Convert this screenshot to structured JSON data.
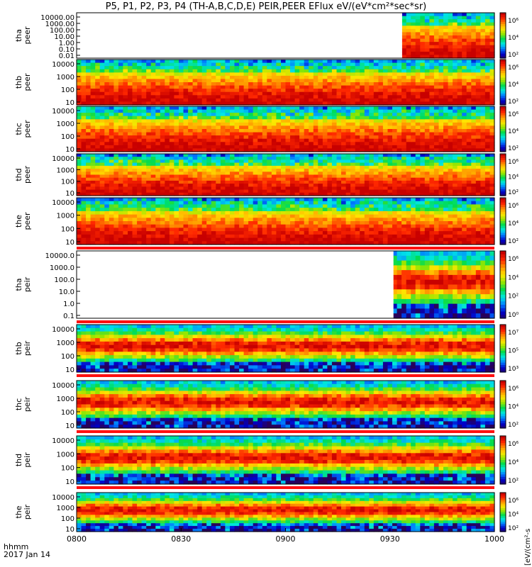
{
  "title": "P5, P1, P2, P3, P4 (TH-A,B,C,D,E) PEIR,PEER EFlux eV/(eV*cm²*sec*sr)",
  "colorbar_unit": "[eV/(cm²-s",
  "time_unit": "hhmm",
  "date": "2017 Jan 14",
  "chart_data": {
    "type": "heatmap",
    "x_tick_labels": [
      "0800",
      "0830",
      "0900",
      "0930",
      "1000"
    ],
    "x_ticks_minutes": [
      0,
      30,
      60,
      90,
      120
    ],
    "xlim_minutes": [
      0,
      120
    ],
    "panels": [
      {
        "name": "tha peer",
        "ylabel": [
          "tha",
          "peer"
        ],
        "yticks": [
          "10000.00",
          "1000.00",
          "100.00",
          "10.00",
          "1.00",
          "0.10",
          "0.01"
        ],
        "data_start_min": 93.5,
        "cbar_ticks": [
          "10⁶",
          "10⁴",
          "10²"
        ],
        "has_bar": false
      },
      {
        "name": "thb peer",
        "ylabel": [
          "thb",
          "peer"
        ],
        "yticks": [
          "10000",
          "1000",
          "100",
          "10"
        ],
        "data_start_min": 0,
        "cbar_ticks": [
          "10⁶",
          "10⁴",
          "10²"
        ],
        "has_bar": false
      },
      {
        "name": "thc peer",
        "ylabel": [
          "thc",
          "peer"
        ],
        "yticks": [
          "10000",
          "1000",
          "100",
          "10"
        ],
        "data_start_min": 0,
        "cbar_ticks": [
          "10⁶",
          "10⁴",
          "10²"
        ],
        "has_bar": false
      },
      {
        "name": "thd peer",
        "ylabel": [
          "thd",
          "peer"
        ],
        "yticks": [
          "10000",
          "1000",
          "100",
          "10"
        ],
        "data_start_min": 0,
        "cbar_ticks": [
          "10⁶",
          "10⁴",
          "10²"
        ],
        "has_bar": false
      },
      {
        "name": "the peer",
        "ylabel": [
          "the",
          "peer"
        ],
        "yticks": [
          "10000",
          "1000",
          "100",
          "10"
        ],
        "data_start_min": 0,
        "cbar_ticks": [
          "10⁶",
          "10⁴",
          "10²"
        ],
        "has_bar": true
      },
      {
        "name": "tha peir",
        "ylabel": [
          "tha",
          "peir"
        ],
        "yticks": [
          "10000.0",
          "1000.0",
          "100.0",
          "10.0",
          "1.0",
          "0.1"
        ],
        "data_start_min": 91,
        "cbar_ticks": [
          "10⁶",
          "10⁴",
          "10²",
          "10⁰"
        ],
        "has_bar": true
      },
      {
        "name": "thb peir",
        "ylabel": [
          "thb",
          "peir"
        ],
        "yticks": [
          "10000",
          "1000",
          "100",
          "10"
        ],
        "data_start_min": 0,
        "cbar_ticks": [
          "10⁷",
          "10⁵",
          "10³"
        ],
        "has_bar": true
      },
      {
        "name": "thc peir",
        "ylabel": [
          "thc",
          "peir"
        ],
        "yticks": [
          "10000",
          "1000",
          "100",
          "10"
        ],
        "data_start_min": 0,
        "cbar_ticks": [
          "10⁶",
          "10⁴",
          "10²"
        ],
        "has_bar": true
      },
      {
        "name": "thd peir",
        "ylabel": [
          "thd",
          "peir"
        ],
        "yticks": [
          "10000",
          "1000",
          "100",
          "10"
        ],
        "data_start_min": 0,
        "cbar_ticks": [
          "10⁶",
          "10⁴",
          "10²"
        ],
        "has_bar": true
      },
      {
        "name": "the peir",
        "ylabel": [
          "the",
          "peir"
        ],
        "yticks": [
          "10000",
          "1000",
          "100",
          "10"
        ],
        "data_start_min": 0,
        "cbar_ticks": [
          "10⁶",
          "10⁴",
          "10²"
        ],
        "has_bar": false
      }
    ]
  }
}
